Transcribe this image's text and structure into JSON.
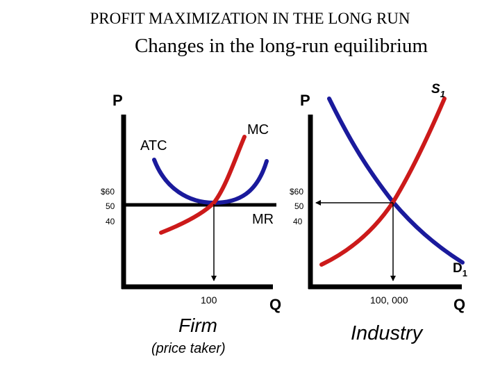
{
  "title": "PROFIT MAXIMIZATION IN THE LONG RUN",
  "subtitle": "Changes in the long-run equilibrium",
  "firm": {
    "price_axis_label": "P",
    "quantity_axis_label": "Q",
    "atc_label": "ATC",
    "mc_label": "MC",
    "mr_label": "MR",
    "price_ticks": [
      "$60",
      "50",
      "40"
    ],
    "quantity_tick": "100",
    "caption": "Firm",
    "caption_note": "(price taker)"
  },
  "industry": {
    "price_axis_label": "P",
    "quantity_axis_label": "Q",
    "supply_label": "S",
    "supply_subscript": "1",
    "demand_label": "D",
    "demand_subscript": "1",
    "price_ticks": [
      "$60",
      "50",
      "40"
    ],
    "quantity_tick": "100, 000",
    "caption": "Industry"
  },
  "colors": {
    "atc": "#1a1a9c",
    "mc": "#cc1a1a",
    "supply": "#cc1a1a",
    "demand": "#1a1a9c",
    "axis": "#000000"
  }
}
